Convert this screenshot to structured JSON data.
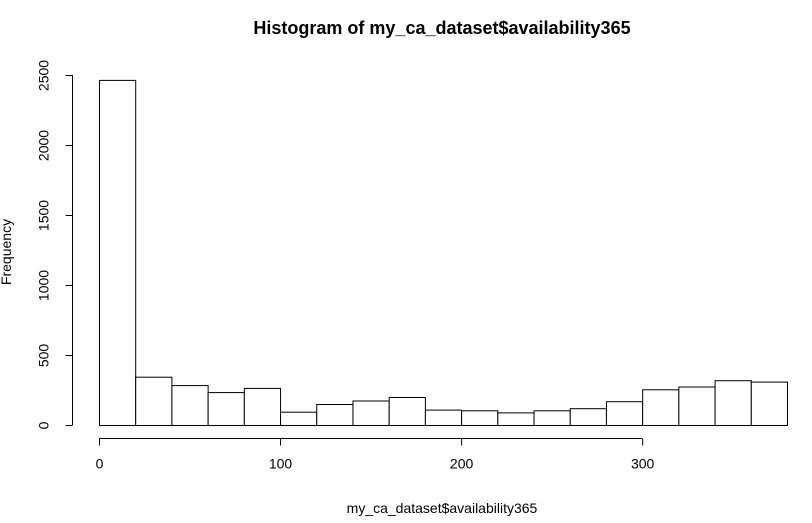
{
  "chart_data": {
    "type": "bar",
    "title": "Histogram of my_ca_dataset$availability365",
    "xlabel": "my_ca_dataset$availability365",
    "ylabel": "Frequency",
    "bin_width": 20,
    "bins": [
      {
        "x0": 0,
        "x1": 20,
        "count": 2465
      },
      {
        "x0": 20,
        "x1": 40,
        "count": 345
      },
      {
        "x0": 40,
        "x1": 60,
        "count": 285
      },
      {
        "x0": 60,
        "x1": 80,
        "count": 235
      },
      {
        "x0": 80,
        "x1": 100,
        "count": 265
      },
      {
        "x0": 100,
        "x1": 120,
        "count": 95
      },
      {
        "x0": 120,
        "x1": 140,
        "count": 150
      },
      {
        "x0": 140,
        "x1": 160,
        "count": 175
      },
      {
        "x0": 160,
        "x1": 180,
        "count": 200
      },
      {
        "x0": 180,
        "x1": 200,
        "count": 110
      },
      {
        "x0": 200,
        "x1": 220,
        "count": 105
      },
      {
        "x0": 220,
        "x1": 240,
        "count": 90
      },
      {
        "x0": 240,
        "x1": 260,
        "count": 105
      },
      {
        "x0": 260,
        "x1": 280,
        "count": 120
      },
      {
        "x0": 280,
        "x1": 300,
        "count": 170
      },
      {
        "x0": 300,
        "x1": 320,
        "count": 255
      },
      {
        "x0": 320,
        "x1": 340,
        "count": 275
      },
      {
        "x0": 340,
        "x1": 360,
        "count": 320
      },
      {
        "x0": 360,
        "x1": 380,
        "count": 310
      }
    ],
    "xticks": [
      0,
      100,
      200,
      300
    ],
    "yticks": [
      0,
      500,
      1000,
      1500,
      2000,
      2500
    ],
    "xlim": [
      0,
      380
    ],
    "ylim": [
      0,
      2500
    ],
    "grid": false,
    "bar_fill": "#ffffff",
    "bar_stroke": "#000000"
  }
}
